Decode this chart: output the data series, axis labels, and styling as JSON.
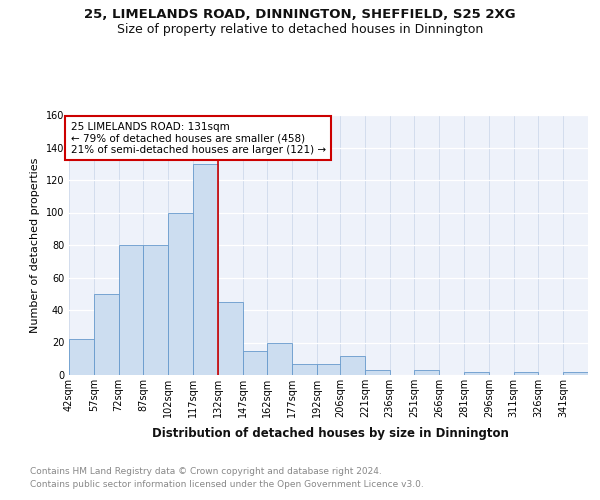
{
  "title": "25, LIMELANDS ROAD, DINNINGTON, SHEFFIELD, S25 2XG",
  "subtitle": "Size of property relative to detached houses in Dinnington",
  "xlabel": "Distribution of detached houses by size in Dinnington",
  "ylabel": "Number of detached properties",
  "bar_color": "#ccddf0",
  "bar_edge_color": "#6699cc",
  "background_color": "#eef2fa",
  "vline_x": 132,
  "vline_color": "#cc0000",
  "annotation_text": "25 LIMELANDS ROAD: 131sqm\n← 79% of detached houses are smaller (458)\n21% of semi-detached houses are larger (121) →",
  "annotation_box_color": "#ffffff",
  "annotation_box_edge": "#cc0000",
  "bins": [
    42,
    57,
    72,
    87,
    102,
    117,
    132,
    147,
    162,
    177,
    192,
    206,
    221,
    236,
    251,
    266,
    281,
    296,
    311,
    326,
    341
  ],
  "bin_labels": [
    "42sqm",
    "57sqm",
    "72sqm",
    "87sqm",
    "102sqm",
    "117sqm",
    "132sqm",
    "147sqm",
    "162sqm",
    "177sqm",
    "192sqm",
    "206sqm",
    "221sqm",
    "236sqm",
    "251sqm",
    "266sqm",
    "281sqm",
    "296sqm",
    "311sqm",
    "326sqm",
    "341sqm"
  ],
  "counts": [
    22,
    50,
    80,
    80,
    100,
    130,
    45,
    15,
    20,
    7,
    7,
    12,
    3,
    0,
    3,
    0,
    2,
    0,
    2,
    0,
    2
  ],
  "ylim": [
    0,
    160
  ],
  "yticks": [
    0,
    20,
    40,
    60,
    80,
    100,
    120,
    140,
    160
  ],
  "footer_line1": "Contains HM Land Registry data © Crown copyright and database right 2024.",
  "footer_line2": "Contains public sector information licensed under the Open Government Licence v3.0.",
  "title_fontsize": 9.5,
  "subtitle_fontsize": 9,
  "xlabel_fontsize": 8.5,
  "ylabel_fontsize": 8,
  "tick_fontsize": 7,
  "footer_fontsize": 6.5,
  "annotation_fontsize": 7.5
}
